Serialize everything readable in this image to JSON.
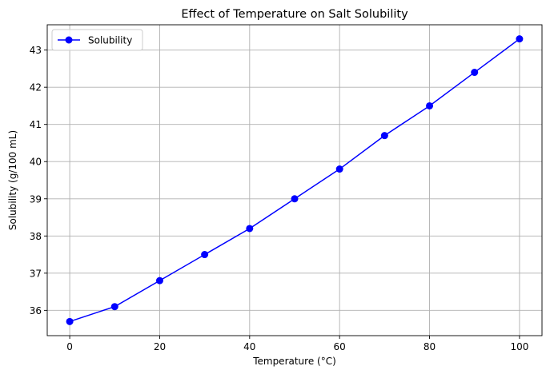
{
  "chart_data": {
    "type": "line",
    "title": "Effect of Temperature on Salt Solubility",
    "xlabel": "Temperature (°C)",
    "ylabel": "Solubility (g/100 mL)",
    "x": [
      0,
      10,
      20,
      30,
      40,
      50,
      60,
      70,
      80,
      90,
      100
    ],
    "series": [
      {
        "name": "Solubility",
        "color": "#0000ff",
        "marker": "circle",
        "values": [
          35.7,
          36.1,
          36.8,
          37.5,
          38.2,
          39.0,
          39.8,
          40.7,
          41.5,
          42.4,
          43.3
        ]
      }
    ],
    "xlim": [
      -5,
      105
    ],
    "ylim": [
      35.32,
      43.68
    ],
    "xticks": [
      0,
      20,
      40,
      60,
      80,
      100
    ],
    "yticks": [
      36,
      37,
      38,
      39,
      40,
      41,
      42,
      43
    ],
    "grid": true,
    "legend": "top-left"
  }
}
